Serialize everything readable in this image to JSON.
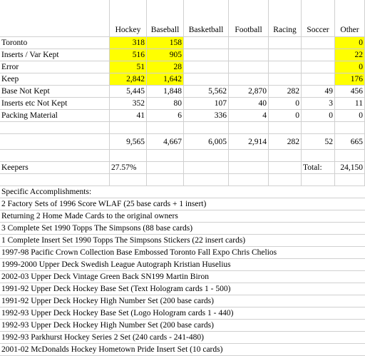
{
  "highlight_color": "#ffff00",
  "headers": [
    "Hockey",
    "Baseball",
    "Basketball",
    "Football",
    "Racing",
    "Soccer",
    "Other"
  ],
  "stat_rows": [
    {
      "label": "Toronto",
      "cells": [
        "318",
        "158",
        "",
        "",
        "",
        "",
        "0"
      ],
      "hl": [
        true,
        true,
        false,
        false,
        false,
        false,
        true
      ]
    },
    {
      "label": "Inserts / Var Kept",
      "cells": [
        "516",
        "905",
        "",
        "",
        "",
        "",
        "22"
      ],
      "hl": [
        true,
        true,
        false,
        false,
        false,
        false,
        true
      ]
    },
    {
      "label": "Error",
      "cells": [
        "51",
        "28",
        "",
        "",
        "",
        "",
        "0"
      ],
      "hl": [
        true,
        true,
        false,
        false,
        false,
        false,
        true
      ]
    },
    {
      "label": "Keep",
      "cells": [
        "2,842",
        "1,642",
        "",
        "",
        "",
        "",
        "176"
      ],
      "hl": [
        true,
        true,
        false,
        false,
        false,
        false,
        true
      ]
    },
    {
      "label": "Base Not Kept",
      "cells": [
        "5,445",
        "1,848",
        "5,562",
        "2,870",
        "282",
        "49",
        "456"
      ],
      "hl": [
        false,
        false,
        false,
        false,
        false,
        false,
        false
      ]
    },
    {
      "label": "Inserts etc Not Kept",
      "cells": [
        "352",
        "80",
        "107",
        "40",
        "0",
        "3",
        "11"
      ],
      "hl": [
        false,
        false,
        false,
        false,
        false,
        false,
        false
      ]
    },
    {
      "label": "Packing Material",
      "cells": [
        "41",
        "6",
        "336",
        "4",
        "0",
        "0",
        "0"
      ],
      "hl": [
        false,
        false,
        false,
        false,
        false,
        false,
        false
      ]
    }
  ],
  "totals_row": [
    "9,565",
    "4,667",
    "6,005",
    "2,914",
    "282",
    "52",
    "665"
  ],
  "keepers": {
    "label": "Keepers",
    "percent": "27.57%",
    "total_label": "Total:",
    "total_value": "24,150"
  },
  "accomplishments_title": "Specific Accomplishments:",
  "accomplishments": [
    "2 Factory Sets of 1996 Score WLAF (25 base cards + 1 insert)",
    "Returning 2 Home Made Cards to the original owners",
    "3 Complete Set 1990 Topps The Simpsons (88 base cards)",
    "1 Complete Insert Set 1990 Topps The Simpsons Stickers (22 insert cards)",
    "1997-98 Pacific Crown Collection Base Embossed Toronto Fall Expo Chris Chelios",
    "1999-2000 Upper Deck Swedish League Autograph Kristian Huselius",
    "2002-03 Upper Deck Vintage Green Back SN199 Martin Biron",
    "1991-92 Upper Deck Hockey Base Set (Text Hologram cards 1 - 500)",
    "1991-92 Upper Deck Hockey High Number Set (200 base cards)",
    "1992-93 Upper Deck Hockey Base Set (Logo Hologram cards 1 - 440)",
    "1992-93 Upper Deck Hockey High Number Set (200 base cards)",
    "1992-93 Parkhurst Hockey Series 2 Set (240 cards - 241-480)",
    "2001-02 McDonalds Hockey Hometown Pride Insert Set (10 cards)"
  ]
}
